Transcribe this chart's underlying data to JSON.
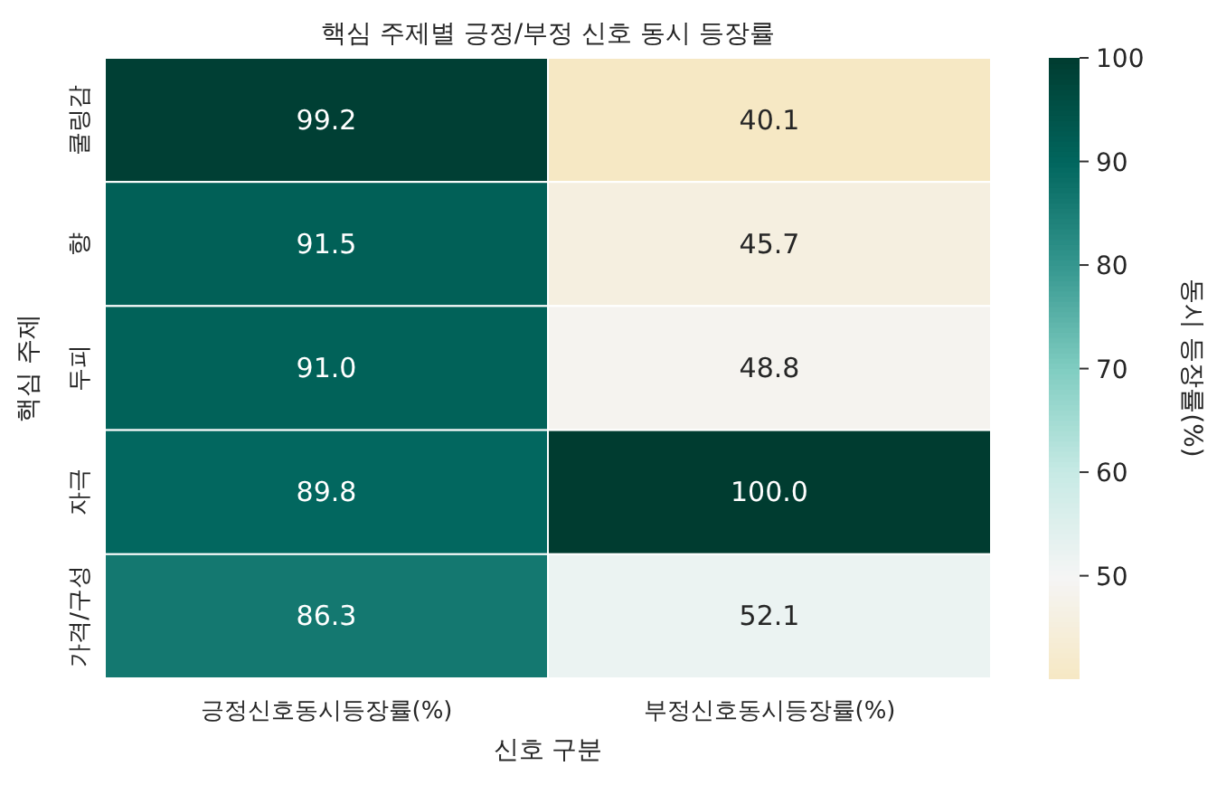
{
  "chart_data": {
    "type": "heatmap",
    "title": "핵심 주제별 긍정/부정 신호 동시 등장률",
    "xlabel": "신호 구분",
    "ylabel": "핵심 주제",
    "clabel": "동시 등장률(%)",
    "categories": [
      "긍정신호동시등장률(%)",
      "부정신호동시등장률(%)"
    ],
    "y_categories": [
      "쿨링감",
      "향",
      "두피",
      "자극",
      "가격/구성"
    ],
    "cells": [
      [
        99.2,
        40.1
      ],
      [
        91.5,
        45.7
      ],
      [
        91.0,
        48.8
      ],
      [
        89.8,
        100.0
      ],
      [
        86.3,
        52.1
      ]
    ],
    "cell_labels": [
      [
        "99.2",
        "40.1"
      ],
      [
        "91.5",
        "45.7"
      ],
      [
        "91.0",
        "48.8"
      ],
      [
        "89.8",
        "100.0"
      ],
      [
        "86.3",
        "52.1"
      ]
    ],
    "clim": [
      40.1,
      100
    ],
    "cticks": [
      50,
      60,
      70,
      80,
      90,
      100
    ]
  }
}
